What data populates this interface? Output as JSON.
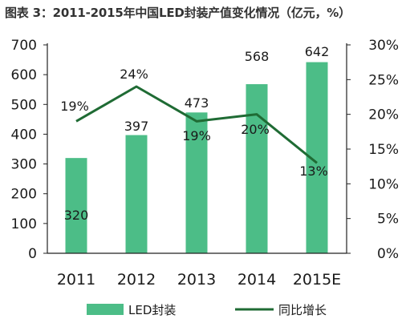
{
  "title": "图表 3：2011-2015年中国LED封装产值变化情况（亿元，%）",
  "colors": {
    "bar": "#4cbd87",
    "line": "#1f6b34",
    "axis": "#222222",
    "text": "#1a1a1a"
  },
  "chart_data": {
    "type": "bar",
    "categories": [
      "2011",
      "2012",
      "2013",
      "2014",
      "2015E"
    ],
    "series": [
      {
        "name": "LED封装",
        "type": "bar",
        "axis": "left",
        "values": [
          320,
          397,
          473,
          568,
          642
        ]
      },
      {
        "name": "同比增长",
        "type": "line",
        "axis": "right",
        "values": [
          19,
          24,
          19,
          20,
          13
        ]
      }
    ],
    "bar_labels": [
      "320",
      "397",
      "473",
      "568",
      "642"
    ],
    "line_labels": [
      "19%",
      "24%",
      "19%",
      "20%",
      "13%"
    ],
    "y_left": {
      "range": [
        0,
        700
      ],
      "ticks": [
        "0",
        "100",
        "200",
        "300",
        "400",
        "500",
        "600",
        "700"
      ]
    },
    "y_right": {
      "range": [
        0,
        30
      ],
      "ticks": [
        "0%",
        "5%",
        "10%",
        "15%",
        "20%",
        "25%",
        "30%"
      ]
    },
    "legend": {
      "position": "bottom",
      "items": [
        "LED封装",
        "同比增长"
      ]
    },
    "grid": false
  }
}
